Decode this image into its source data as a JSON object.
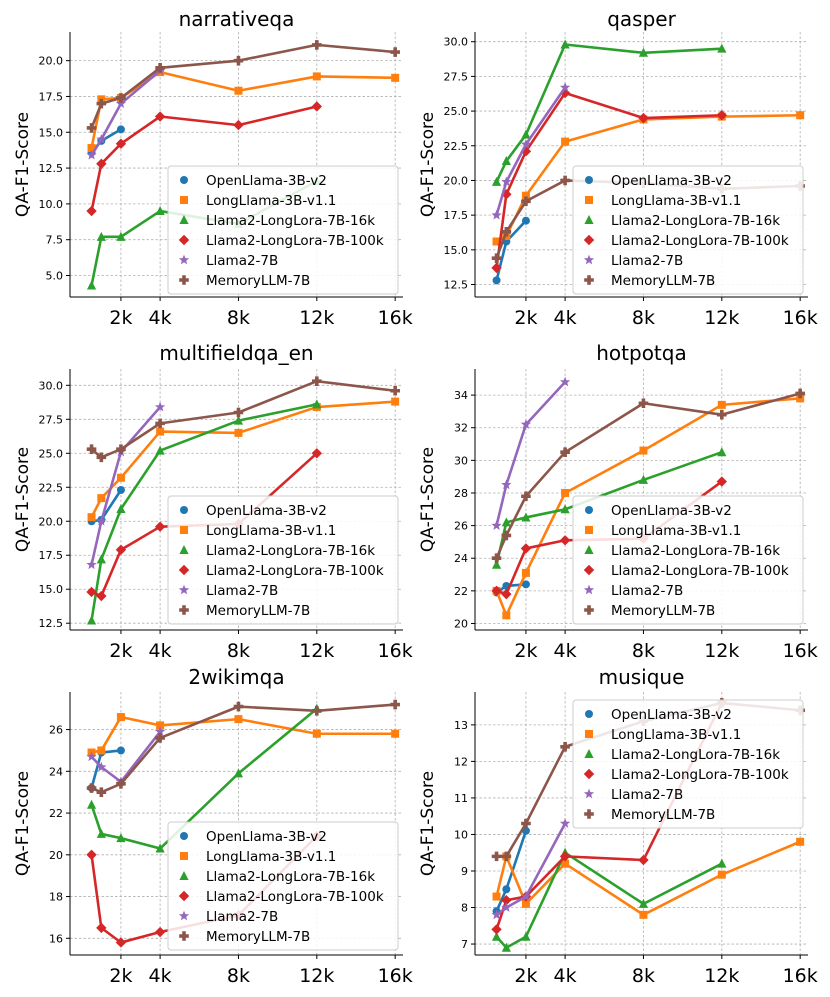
{
  "figure": {
    "ylabel": "QA-F1-Score"
  },
  "series_styles": [
    {
      "name": "OpenLlama-3B-v2",
      "color": "#1f77b4",
      "marker": "circle"
    },
    {
      "name": "LongLlama-3B-v1.1",
      "color": "#ff7f0e",
      "marker": "square"
    },
    {
      "name": "Llama2-LongLora-7B-16k",
      "color": "#2ca02c",
      "marker": "triangle"
    },
    {
      "name": "Llama2-LongLora-7B-100k",
      "color": "#d62728",
      "marker": "diamond"
    },
    {
      "name": "Llama2-7B",
      "color": "#9467bd",
      "marker": "star"
    },
    {
      "name": "MemoryLLM-7B",
      "color": "#8c564b",
      "marker": "plus"
    }
  ],
  "chart_data": [
    {
      "type": "line",
      "title": "narrativeqa",
      "xlabel": "",
      "ylabel": "QA-F1-Score",
      "xlim": [
        -0.6,
        16.4
      ],
      "ylim": [
        3.5,
        22
      ],
      "xticks": [
        2,
        4,
        8,
        12,
        16
      ],
      "xtick_labels": [
        "2k",
        "4k",
        "8k",
        "12k",
        "16k"
      ],
      "yticks": [
        5,
        7.5,
        10,
        12.5,
        15,
        17.5,
        20
      ],
      "ytick_labels": [
        "5.0",
        "7.5",
        "10.0",
        "12.5",
        "15.0",
        "17.5",
        "20.0"
      ],
      "legend_position": "center-right",
      "series": [
        {
          "name": "OpenLlama-3B-v2",
          "x": [
            0.5,
            1,
            2
          ],
          "y": [
            13.6,
            14.4,
            15.2
          ]
        },
        {
          "name": "LongLlama-3B-v1.1",
          "x": [
            0.5,
            1,
            2,
            4,
            8,
            12,
            16
          ],
          "y": [
            13.9,
            17.3,
            17.4,
            19.2,
            17.9,
            18.9,
            18.8
          ]
        },
        {
          "name": "Llama2-LongLora-7B-16k",
          "x": [
            0.5,
            1,
            2,
            4,
            8,
            12
          ],
          "y": [
            4.3,
            7.7,
            7.7,
            9.5,
            8.6,
            11.6
          ]
        },
        {
          "name": "Llama2-LongLora-7B-100k",
          "x": [
            0.5,
            1,
            2,
            4,
            8,
            12
          ],
          "y": [
            9.5,
            12.8,
            14.2,
            16.1,
            15.5,
            16.8
          ]
        },
        {
          "name": "Llama2-7B",
          "x": [
            0.5,
            1,
            2,
            4
          ],
          "y": [
            13.4,
            14.5,
            17.0,
            19.3
          ]
        },
        {
          "name": "MemoryLLM-7B",
          "x": [
            0.5,
            1,
            2,
            4,
            8,
            12,
            16
          ],
          "y": [
            15.3,
            17.0,
            17.4,
            19.5,
            20.0,
            21.1,
            20.6
          ]
        }
      ]
    },
    {
      "type": "line",
      "title": "qasper",
      "xlabel": "",
      "ylabel": "QA-F1-Score",
      "xlim": [
        -0.6,
        16.4
      ],
      "ylim": [
        11.6,
        30.7
      ],
      "xticks": [
        2,
        4,
        8,
        12,
        16
      ],
      "xtick_labels": [
        "2k",
        "4k",
        "8k",
        "12k",
        "16k"
      ],
      "yticks": [
        12.5,
        15,
        17.5,
        20,
        22.5,
        25,
        27.5,
        30
      ],
      "ytick_labels": [
        "12.5",
        "15.0",
        "17.5",
        "20.0",
        "22.5",
        "25.0",
        "27.5",
        "30.0"
      ],
      "legend_position": "center-right",
      "series": [
        {
          "name": "OpenLlama-3B-v2",
          "x": [
            0.5,
            1,
            2
          ],
          "y": [
            12.8,
            15.6,
            17.1
          ]
        },
        {
          "name": "LongLlama-3B-v1.1",
          "x": [
            0.5,
            1,
            2,
            4,
            8,
            12,
            16
          ],
          "y": [
            15.6,
            16.0,
            18.9,
            22.8,
            24.4,
            24.6,
            24.7
          ]
        },
        {
          "name": "Llama2-LongLora-7B-16k",
          "x": [
            0.5,
            1,
            2,
            4,
            8,
            12
          ],
          "y": [
            19.9,
            21.4,
            23.3,
            29.8,
            29.2,
            29.5
          ]
        },
        {
          "name": "Llama2-LongLora-7B-100k",
          "x": [
            0.5,
            1,
            2,
            4,
            8,
            12
          ],
          "y": [
            13.7,
            19.0,
            22.1,
            26.3,
            24.5,
            24.7
          ]
        },
        {
          "name": "Llama2-7B",
          "x": [
            0.5,
            1,
            2,
            4
          ],
          "y": [
            17.5,
            19.9,
            22.6,
            26.7
          ]
        },
        {
          "name": "MemoryLLM-7B",
          "x": [
            0.5,
            1,
            2,
            4,
            8,
            12,
            16
          ],
          "y": [
            14.4,
            16.3,
            18.5,
            20.0,
            19.8,
            19.4,
            19.6
          ]
        }
      ]
    },
    {
      "type": "line",
      "title": "multifieldqa_en",
      "xlabel": "",
      "ylabel": "QA-F1-Score",
      "xlim": [
        -0.6,
        16.4
      ],
      "ylim": [
        12.0,
        31.2
      ],
      "xticks": [
        2,
        4,
        8,
        12,
        16
      ],
      "xtick_labels": [
        "2k",
        "4k",
        "8k",
        "12k",
        "16k"
      ],
      "yticks": [
        12.5,
        15,
        17.5,
        20,
        22.5,
        25,
        27.5,
        30
      ],
      "ytick_labels": [
        "12.5",
        "15.0",
        "17.5",
        "20.0",
        "22.5",
        "25.0",
        "27.5",
        "30.0"
      ],
      "legend_position": "center-right",
      "series": [
        {
          "name": "OpenLlama-3B-v2",
          "x": [
            0.5,
            1,
            2
          ],
          "y": [
            20.0,
            20.1,
            22.3
          ]
        },
        {
          "name": "LongLlama-3B-v1.1",
          "x": [
            0.5,
            1,
            2,
            4,
            8,
            12,
            16
          ],
          "y": [
            20.3,
            21.7,
            23.2,
            26.6,
            26.5,
            28.4,
            28.8
          ]
        },
        {
          "name": "Llama2-LongLora-7B-16k",
          "x": [
            0.5,
            1,
            2,
            4,
            8,
            12
          ],
          "y": [
            12.7,
            17.2,
            20.9,
            25.2,
            27.4,
            28.6
          ]
        },
        {
          "name": "Llama2-LongLora-7B-100k",
          "x": [
            0.5,
            1,
            2,
            4,
            8,
            12
          ],
          "y": [
            14.8,
            14.5,
            17.9,
            19.6,
            19.8,
            25.0
          ]
        },
        {
          "name": "Llama2-7B",
          "x": [
            0.5,
            1,
            2,
            4
          ],
          "y": [
            16.8,
            20.0,
            25.1,
            28.4
          ]
        },
        {
          "name": "MemoryLLM-7B",
          "x": [
            0.5,
            1,
            2,
            4,
            8,
            12,
            16
          ],
          "y": [
            25.3,
            24.7,
            25.3,
            27.2,
            28.0,
            30.3,
            29.6
          ]
        }
      ]
    },
    {
      "type": "line",
      "title": "hotpotqa",
      "xlabel": "",
      "ylabel": "QA-F1-Score",
      "xlim": [
        -0.6,
        16.4
      ],
      "ylim": [
        19.6,
        35.6
      ],
      "xticks": [
        2,
        4,
        8,
        12,
        16
      ],
      "xtick_labels": [
        "2k",
        "4k",
        "8k",
        "12k",
        "16k"
      ],
      "yticks": [
        20,
        22,
        24,
        26,
        28,
        30,
        32,
        34
      ],
      "ytick_labels": [
        "20",
        "22",
        "24",
        "26",
        "28",
        "30",
        "32",
        "34"
      ],
      "legend_position": "center-right",
      "series": [
        {
          "name": "OpenLlama-3B-v2",
          "x": [
            0.5,
            1,
            2
          ],
          "y": [
            21.9,
            22.3,
            22.4
          ]
        },
        {
          "name": "LongLlama-3B-v1.1",
          "x": [
            0.5,
            1,
            2,
            4,
            8,
            12,
            16
          ],
          "y": [
            22.0,
            20.5,
            23.1,
            28.0,
            30.6,
            33.4,
            33.8
          ]
        },
        {
          "name": "Llama2-LongLora-7B-16k",
          "x": [
            0.5,
            1,
            2,
            4,
            8,
            12
          ],
          "y": [
            23.6,
            26.2,
            26.5,
            27.0,
            28.8,
            30.5
          ]
        },
        {
          "name": "Llama2-LongLora-7B-100k",
          "x": [
            0.5,
            1,
            2,
            4,
            8,
            12
          ],
          "y": [
            22.0,
            21.8,
            24.6,
            25.1,
            25.2,
            28.7
          ]
        },
        {
          "name": "Llama2-7B",
          "x": [
            0.5,
            1,
            2,
            4
          ],
          "y": [
            26.0,
            28.5,
            32.2,
            34.8
          ]
        },
        {
          "name": "MemoryLLM-7B",
          "x": [
            0.5,
            1,
            2,
            4,
            8,
            12,
            16
          ],
          "y": [
            24.0,
            25.4,
            27.8,
            30.5,
            33.5,
            32.8,
            34.1
          ]
        }
      ]
    },
    {
      "type": "line",
      "title": "2wikimqa",
      "xlabel": "",
      "ylabel": "QA-F1-Score",
      "xlim": [
        -0.6,
        16.4
      ],
      "ylim": [
        15.2,
        27.8
      ],
      "xticks": [
        2,
        4,
        8,
        12,
        16
      ],
      "xtick_labels": [
        "2k",
        "4k",
        "8k",
        "12k",
        "16k"
      ],
      "yticks": [
        16,
        18,
        20,
        22,
        24,
        26
      ],
      "ytick_labels": [
        "16",
        "18",
        "20",
        "22",
        "24",
        "26"
      ],
      "legend_position": "center-right",
      "series": [
        {
          "name": "OpenLlama-3B-v2",
          "x": [
            0.5,
            1,
            2
          ],
          "y": [
            23.2,
            24.9,
            25.0
          ]
        },
        {
          "name": "LongLlama-3B-v1.1",
          "x": [
            0.5,
            1,
            2,
            4,
            8,
            12,
            16
          ],
          "y": [
            24.9,
            25.0,
            26.6,
            26.2,
            26.5,
            25.8,
            25.8
          ]
        },
        {
          "name": "Llama2-LongLora-7B-16k",
          "x": [
            0.5,
            1,
            2,
            4,
            8,
            12
          ],
          "y": [
            22.4,
            21.0,
            20.8,
            20.3,
            23.9,
            27.0
          ]
        },
        {
          "name": "Llama2-LongLora-7B-100k",
          "x": [
            0.5,
            1,
            2,
            4,
            8,
            12
          ],
          "y": [
            20.0,
            16.5,
            15.8,
            16.3,
            17.1,
            20.9
          ]
        },
        {
          "name": "Llama2-7B",
          "x": [
            0.5,
            1,
            2,
            4
          ],
          "y": [
            24.7,
            24.2,
            23.5,
            25.9
          ]
        },
        {
          "name": "MemoryLLM-7B",
          "x": [
            0.5,
            1,
            2,
            4,
            8,
            12,
            16
          ],
          "y": [
            23.2,
            23.0,
            23.4,
            25.6,
            27.1,
            26.9,
            27.2
          ]
        }
      ]
    },
    {
      "type": "line",
      "title": "musique",
      "xlabel": "",
      "ylabel": "QA-F1-Score",
      "xlim": [
        -0.6,
        16.4
      ],
      "ylim": [
        6.7,
        13.9
      ],
      "xticks": [
        2,
        4,
        8,
        12,
        16
      ],
      "xtick_labels": [
        "2k",
        "4k",
        "8k",
        "12k",
        "16k"
      ],
      "yticks": [
        7,
        8,
        9,
        10,
        11,
        12,
        13
      ],
      "ytick_labels": [
        "7",
        "8",
        "9",
        "10",
        "11",
        "12",
        "13"
      ],
      "legend_position": "top-right",
      "series": [
        {
          "name": "OpenLlama-3B-v2",
          "x": [
            0.5,
            1,
            2
          ],
          "y": [
            7.9,
            8.5,
            10.1
          ]
        },
        {
          "name": "LongLlama-3B-v1.1",
          "x": [
            0.5,
            1,
            2,
            4,
            8,
            12,
            16
          ],
          "y": [
            8.3,
            9.4,
            8.1,
            9.2,
            7.8,
            8.9,
            9.8
          ]
        },
        {
          "name": "Llama2-LongLora-7B-16k",
          "x": [
            0.5,
            1,
            2,
            4,
            8,
            12
          ],
          "y": [
            7.2,
            6.9,
            7.2,
            9.5,
            8.1,
            9.2
          ]
        },
        {
          "name": "Llama2-LongLora-7B-100k",
          "x": [
            0.5,
            1,
            2,
            4,
            8,
            12
          ],
          "y": [
            7.4,
            8.2,
            8.3,
            9.4,
            9.3,
            13.6
          ]
        },
        {
          "name": "Llama2-7B",
          "x": [
            0.5,
            1,
            2,
            4
          ],
          "y": [
            7.8,
            8.0,
            8.3,
            10.3
          ]
        },
        {
          "name": "MemoryLLM-7B",
          "x": [
            0.5,
            1,
            2,
            4,
            8,
            12,
            16
          ],
          "y": [
            9.4,
            9.4,
            10.3,
            12.4,
            13.1,
            13.6,
            13.4
          ]
        }
      ]
    }
  ]
}
